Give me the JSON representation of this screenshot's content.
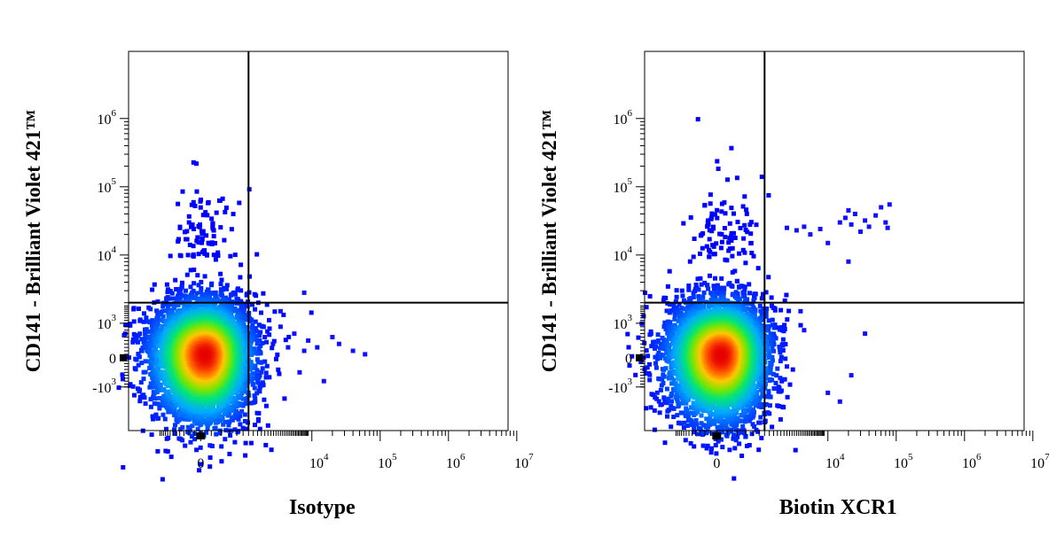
{
  "chart_data": [
    {
      "type": "scatter",
      "panel": "left",
      "xlabel": "Isotype",
      "ylabel": "CD141 - Brilliant Violet 421™",
      "x_scale": "biexponential",
      "y_scale": "biexponential",
      "x_ticks": [
        {
          "base": "0",
          "exp": ""
        },
        {
          "base": "10",
          "exp": "4"
        },
        {
          "base": "10",
          "exp": "5"
        },
        {
          "base": "10",
          "exp": "6"
        },
        {
          "base": "10",
          "exp": "7"
        }
      ],
      "y_ticks": [
        {
          "base": "-10",
          "exp": "3"
        },
        {
          "base": "0",
          "exp": ""
        },
        {
          "base": "10",
          "exp": "3"
        },
        {
          "base": "10",
          "exp": "4"
        },
        {
          "base": "10",
          "exp": "5"
        },
        {
          "base": "10",
          "exp": "6"
        }
      ],
      "x_tick_values": [
        0,
        10000,
        100000,
        1000000,
        10000000
      ],
      "y_tick_values": [
        -1000,
        0,
        1000,
        10000,
        100000,
        1000000
      ],
      "quadrant_gate": {
        "x": 1500,
        "y": 2000
      },
      "population": {
        "center_x": 50,
        "center_y": 150,
        "density": "high"
      },
      "outlier_points": [
        {
          "x": 2500,
          "y": 600
        },
        {
          "x": 3200,
          "y": 400
        },
        {
          "x": 4000,
          "y": 900
        },
        {
          "x": 5000,
          "y": 300
        },
        {
          "x": 6000,
          "y": 700
        },
        {
          "x": 8000,
          "y": 200
        },
        {
          "x": 9000,
          "y": 500
        },
        {
          "x": 12000,
          "y": 300
        },
        {
          "x": 20000,
          "y": 600
        },
        {
          "x": 25000,
          "y": 400
        },
        {
          "x": 40000,
          "y": 200
        },
        {
          "x": 60000,
          "y": 100
        },
        {
          "x": 15000,
          "y": -800
        },
        {
          "x": 7000,
          "y": -500
        },
        {
          "x": 4000,
          "y": 1500
        },
        {
          "x": 8000,
          "y": 2800
        }
      ],
      "grid": false,
      "legend": "none"
    },
    {
      "type": "scatter",
      "panel": "right",
      "xlabel": "Biotin XCR1",
      "ylabel": "CD141 - Brilliant Violet 421™",
      "x_scale": "biexponential",
      "y_scale": "biexponential",
      "x_ticks": [
        {
          "base": "0",
          "exp": ""
        },
        {
          "base": "10",
          "exp": "4"
        },
        {
          "base": "10",
          "exp": "5"
        },
        {
          "base": "10",
          "exp": "6"
        },
        {
          "base": "10",
          "exp": "7"
        }
      ],
      "y_ticks": [
        {
          "base": "-10",
          "exp": "3"
        },
        {
          "base": "0",
          "exp": ""
        },
        {
          "base": "10",
          "exp": "3"
        },
        {
          "base": "10",
          "exp": "4"
        },
        {
          "base": "10",
          "exp": "5"
        },
        {
          "base": "10",
          "exp": "6"
        }
      ],
      "x_tick_values": [
        0,
        10000,
        100000,
        1000000,
        10000000
      ],
      "y_tick_values": [
        -1000,
        0,
        1000,
        10000,
        100000,
        1000000
      ],
      "quadrant_gate": {
        "x": 1500,
        "y": 2000
      },
      "population": {
        "center_x": 50,
        "center_y": 150,
        "density": "high"
      },
      "outlier_points": [
        {
          "x": 3000,
          "y": 25000
        },
        {
          "x": 4000,
          "y": 23000
        },
        {
          "x": 5000,
          "y": 26000
        },
        {
          "x": 6000,
          "y": 20000
        },
        {
          "x": 8000,
          "y": 24000
        },
        {
          "x": 10000,
          "y": 15000
        },
        {
          "x": 15000,
          "y": 30000
        },
        {
          "x": 18000,
          "y": 35000
        },
        {
          "x": 20000,
          "y": 45000
        },
        {
          "x": 22000,
          "y": 28000
        },
        {
          "x": 25000,
          "y": 40000
        },
        {
          "x": 30000,
          "y": 22000
        },
        {
          "x": 35000,
          "y": 32000
        },
        {
          "x": 40000,
          "y": 26000
        },
        {
          "x": 50000,
          "y": 38000
        },
        {
          "x": 60000,
          "y": 50000
        },
        {
          "x": 70000,
          "y": 30000
        },
        {
          "x": 75000,
          "y": 25000
        },
        {
          "x": 80000,
          "y": 55000
        },
        {
          "x": 20000,
          "y": 8000
        },
        {
          "x": 35000,
          "y": 700
        },
        {
          "x": 22000,
          "y": -600
        },
        {
          "x": 15000,
          "y": -1500
        },
        {
          "x": 10000,
          "y": -1200
        },
        {
          "x": 5000,
          "y": 800
        },
        {
          "x": 3000,
          "y": -300
        },
        {
          "x": 4500,
          "y": 1500
        }
      ],
      "grid": false,
      "legend": "none"
    }
  ]
}
